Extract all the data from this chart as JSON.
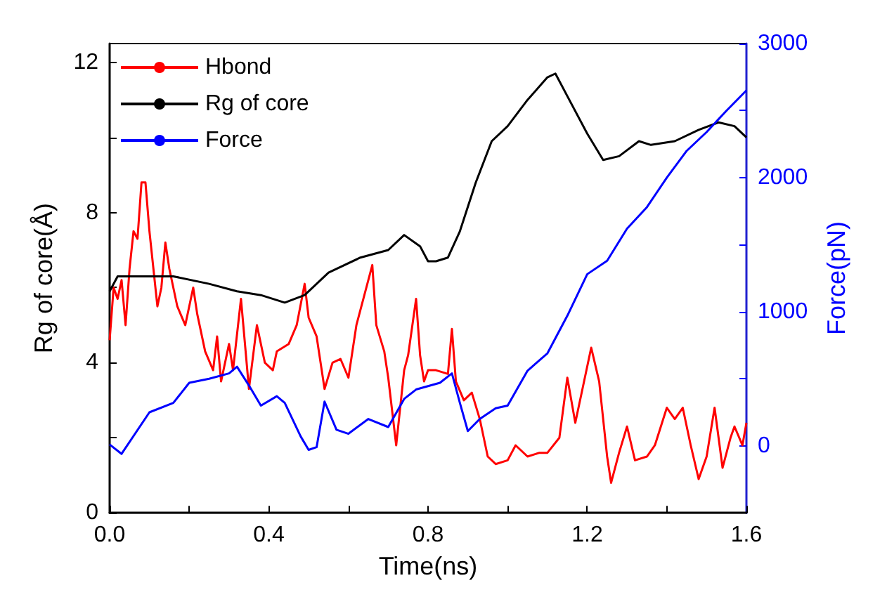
{
  "chart_data": {
    "type": "line",
    "xlabel": "Time(ns)",
    "ylabel": "Rg of core(Å)",
    "y2label": "Force(pN)",
    "xlim": [
      0,
      1.6
    ],
    "xticks": [
      {
        "value": 0,
        "label": "0.0"
      },
      {
        "value": 0.2,
        "label": null
      },
      0.4,
      {
        "value": 0.6,
        "label": null
      },
      0.8,
      {
        "value": 1.0,
        "label": null
      },
      1.2,
      {
        "value": 1.4,
        "label": null
      },
      1.6
    ],
    "ylim": [
      0,
      12.5
    ],
    "yticks": [
      0,
      {
        "value": 2,
        "label": null
      },
      4,
      {
        "value": 6,
        "label": null
      },
      8,
      {
        "value": 10,
        "label": null
      },
      12
    ],
    "y2lim": [
      -500,
      3000
    ],
    "y2ticks": [
      0,
      {
        "value": 500,
        "label": null
      },
      1000,
      {
        "value": 1500,
        "label": null
      },
      2000,
      {
        "value": 2500,
        "label": null
      },
      3000
    ],
    "legend": "top left",
    "grid": false,
    "marker": "none",
    "line_style": "solid",
    "series": [
      {
        "name": "Hbond",
        "color": "#ff0000",
        "x": [
          0,
          0.01,
          0.02,
          0.03,
          0.04,
          0.05,
          0.06,
          0.07,
          0.08,
          0.09,
          0.1,
          0.11,
          0.12,
          0.13,
          0.14,
          0.15,
          0.17,
          0.19,
          0.21,
          0.22,
          0.24,
          0.26,
          0.27,
          0.28,
          0.3,
          0.31,
          0.33,
          0.35,
          0.37,
          0.39,
          0.41,
          0.42,
          0.45,
          0.47,
          0.49,
          0.5,
          0.52,
          0.54,
          0.56,
          0.58,
          0.6,
          0.62,
          0.64,
          0.66,
          0.67,
          0.69,
          0.7,
          0.72,
          0.74,
          0.75,
          0.77,
          0.78,
          0.79,
          0.8,
          0.82,
          0.85,
          0.86,
          0.87,
          0.89,
          0.91,
          0.93,
          0.95,
          0.97,
          1.0,
          1.02,
          1.05,
          1.08,
          1.1,
          1.13,
          1.15,
          1.17,
          1.19,
          1.21,
          1.23,
          1.25,
          1.26,
          1.28,
          1.3,
          1.32,
          1.35,
          1.37,
          1.4,
          1.42,
          1.44,
          1.46,
          1.48,
          1.5,
          1.52,
          1.54,
          1.56,
          1.57,
          1.59,
          1.6
        ],
        "values": [
          4.6,
          6.0,
          5.7,
          6.2,
          5.0,
          6.5,
          7.5,
          7.3,
          8.8,
          8.8,
          7.5,
          6.5,
          5.5,
          6.0,
          7.2,
          6.5,
          5.5,
          5.0,
          6.0,
          5.3,
          4.3,
          3.8,
          4.7,
          3.5,
          4.5,
          3.8,
          5.7,
          3.3,
          5.0,
          4.0,
          3.8,
          4.3,
          4.5,
          5.0,
          6.1,
          5.2,
          4.7,
          3.3,
          4.0,
          4.1,
          3.6,
          5.0,
          5.8,
          6.6,
          5.0,
          4.3,
          3.6,
          1.8,
          3.8,
          4.2,
          5.7,
          4.2,
          3.5,
          3.8,
          3.8,
          3.7,
          4.9,
          3.5,
          3.0,
          3.2,
          2.5,
          1.5,
          1.3,
          1.4,
          1.8,
          1.5,
          1.6,
          1.6,
          2.0,
          3.6,
          2.4,
          3.4,
          4.4,
          3.5,
          1.5,
          0.8,
          1.6,
          2.3,
          1.4,
          1.5,
          1.8,
          2.8,
          2.5,
          2.8,
          1.8,
          0.9,
          1.5,
          2.8,
          1.2,
          2.0,
          2.3,
          1.8,
          2.4
        ]
      },
      {
        "name": "Rg of core",
        "color": "#000000",
        "x": [
          0,
          0.02,
          0.08,
          0.16,
          0.25,
          0.32,
          0.38,
          0.44,
          0.49,
          0.55,
          0.63,
          0.7,
          0.74,
          0.78,
          0.8,
          0.82,
          0.85,
          0.88,
          0.92,
          0.96,
          1.0,
          1.05,
          1.1,
          1.12,
          1.15,
          1.2,
          1.24,
          1.28,
          1.33,
          1.36,
          1.42,
          1.48,
          1.53,
          1.57,
          1.6
        ],
        "values": [
          5.9,
          6.3,
          6.3,
          6.3,
          6.1,
          5.9,
          5.8,
          5.6,
          5.8,
          6.4,
          6.8,
          7.0,
          7.4,
          7.1,
          6.7,
          6.7,
          6.8,
          7.5,
          8.8,
          9.9,
          10.3,
          11.0,
          11.6,
          11.7,
          11.1,
          10.1,
          9.4,
          9.5,
          9.9,
          9.8,
          9.9,
          10.2,
          10.4,
          10.3,
          10.0
        ]
      },
      {
        "name": "Force",
        "color": "#0000ff",
        "axis": "y2",
        "x": [
          0,
          0.03,
          0.1,
          0.16,
          0.2,
          0.25,
          0.3,
          0.32,
          0.35,
          0.38,
          0.42,
          0.44,
          0.48,
          0.5,
          0.52,
          0.54,
          0.57,
          0.6,
          0.65,
          0.7,
          0.74,
          0.77,
          0.83,
          0.86,
          0.88,
          0.9,
          0.93,
          0.97,
          1.0,
          1.05,
          1.1,
          1.15,
          1.2,
          1.25,
          1.3,
          1.35,
          1.4,
          1.45,
          1.5,
          1.55,
          1.6
        ],
        "values": [
          10,
          -60,
          250,
          320,
          470,
          500,
          540,
          590,
          450,
          300,
          370,
          320,
          70,
          -30,
          -10,
          330,
          120,
          90,
          200,
          140,
          350,
          420,
          470,
          540,
          320,
          110,
          200,
          280,
          300,
          560,
          690,
          970,
          1280,
          1380,
          1620,
          1780,
          2000,
          2200,
          2340,
          2500,
          2650
        ]
      }
    ]
  }
}
